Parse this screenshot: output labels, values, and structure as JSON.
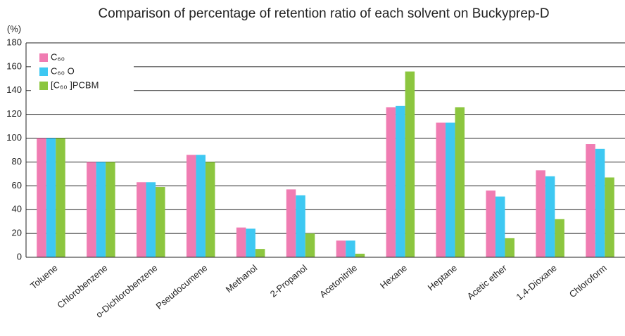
{
  "chart_data": {
    "type": "bar",
    "title": "Comparison of percentage of retention ratio of each solvent on Buckyprep-D",
    "y_axis_label": "(%)",
    "categories": [
      "Toluene",
      "Chlorobenzene",
      "o-Dichlorobenzene",
      "Pseudocumene",
      "Methanol",
      "2-Propanol",
      "Acetonitrile",
      "Hexane",
      "Heptane",
      "Acetic ether",
      "1,4-Dioxane",
      "Chloroform"
    ],
    "series": [
      {
        "name": "C₆₀",
        "color": "#f07cb2",
        "values": [
          100,
          80,
          63,
          86,
          25,
          57,
          14,
          126,
          113,
          56,
          73,
          95
        ]
      },
      {
        "name": "C₆₀ O",
        "color": "#3ec8f2",
        "values": [
          100,
          80,
          63,
          86,
          24,
          52,
          14,
          127,
          113,
          51,
          68,
          91
        ]
      },
      {
        "name": "[C₆₀ ]PCBM",
        "color": "#8cc63f",
        "values": [
          100,
          80,
          59,
          80,
          7,
          20,
          3,
          156,
          126,
          16,
          32,
          67
        ]
      }
    ],
    "ylim": [
      0,
      180
    ],
    "yticks": [
      0,
      20,
      40,
      60,
      80,
      100,
      120,
      140,
      160,
      180
    ],
    "grid": true,
    "legend": "top-left"
  }
}
